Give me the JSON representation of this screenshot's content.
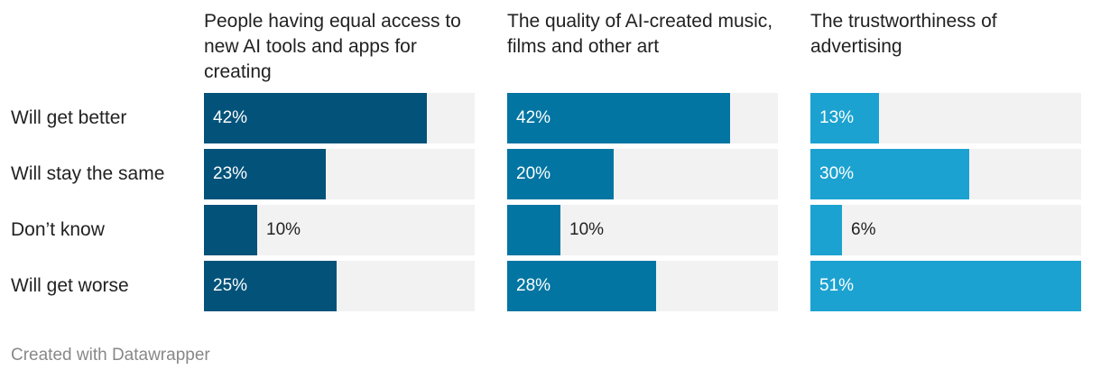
{
  "chart_data": {
    "type": "bar",
    "orientation": "horizontal",
    "categories": [
      "Will get better",
      "Will stay the same",
      "Don’t know",
      "Will get worse"
    ],
    "xlim": [
      0,
      51
    ],
    "grid": false,
    "value_suffix": "%",
    "panels": [
      {
        "title": "People having equal access to new AI tools and apps for creating",
        "color": "#02527a",
        "values": [
          42,
          23,
          10,
          25
        ]
      },
      {
        "title": "The quality of AI-created music, films and other art",
        "color": "#0275a2",
        "values": [
          42,
          20,
          10,
          28
        ]
      },
      {
        "title": "The trustworthiness of advertising",
        "color": "#1ca2d0",
        "values": [
          13,
          30,
          6,
          51
        ]
      }
    ]
  },
  "footer": {
    "credit": "Created with Datawrapper"
  }
}
